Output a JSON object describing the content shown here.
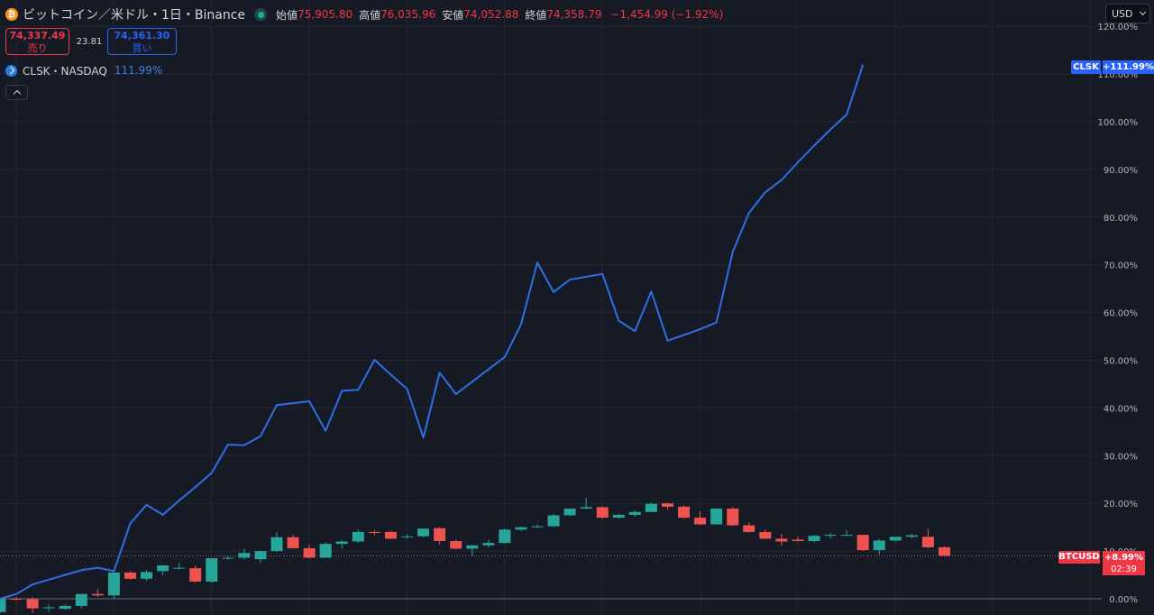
{
  "header": {
    "coin_icon": "bitcoin-icon",
    "coin_glyph": "₿",
    "title": "ビットコイン／米ドル・1日・Binance",
    "market_status": "market-open-dot-icon",
    "ohlc": [
      {
        "label": "始値",
        "value": "75,905.80"
      },
      {
        "label": "高値",
        "value": "76,035.96"
      },
      {
        "label": "安値",
        "value": "74,052.88"
      },
      {
        "label": "終値",
        "value": "74,358.79"
      }
    ],
    "change": "−1,454.99 (−1.92%)"
  },
  "quote": {
    "sell_price": "74,337.49",
    "sell_label": "売り",
    "spread": "23.81",
    "buy_price": "74,361.30",
    "buy_label": "買い"
  },
  "compare": {
    "icon": "compare-symbol-icon",
    "name": "CLSK・NASDAQ",
    "value": "111.99%"
  },
  "currency_select": {
    "value": "USD"
  },
  "tags": {
    "clsk_name": "CLSK",
    "clsk_value": "+111.99%",
    "btc_name": "BTCUSD",
    "btc_value": "+8.99%",
    "btc_countdown": "02:39"
  },
  "colors": {
    "background": "#161a25",
    "grid": "#232632",
    "up": "#26a69a",
    "down": "#ef5350",
    "compare_line": "#2f6fe6",
    "axis_text": "#b2b5be"
  },
  "chart_data": {
    "type": "line",
    "yscale": "percent",
    "ylim": [
      0,
      120
    ],
    "y_ticks": [
      "0.00%",
      "10.00%",
      "20.00%",
      "30.00%",
      "40.00%",
      "50.00%",
      "60.00%",
      "70.00%",
      "80.00%",
      "90.00%",
      "100.00%",
      "110.00%",
      "120.00%"
    ],
    "y_tick_values": [
      0,
      10,
      20,
      30,
      40,
      50,
      60,
      70,
      80,
      90,
      100,
      110,
      120
    ],
    "grid": true,
    "reference_line_value": 8.99,
    "baseline_value": 0,
    "series": [
      {
        "name": "CLSK",
        "kind": "line",
        "values": [
          0.0,
          1.0,
          3.0,
          4.0,
          5.0,
          6.0,
          6.5,
          5.8,
          15.8,
          19.7,
          17.6,
          20.6,
          23.4,
          26.4,
          32.3,
          32.2,
          34.1,
          40.6,
          41.0,
          41.4,
          35.2,
          43.6,
          43.8,
          50.1,
          47.0,
          44.0,
          33.8,
          47.4,
          42.9,
          45.5,
          48.1,
          50.7,
          57.5,
          70.5,
          64.3,
          66.9,
          67.5,
          68.1,
          58.3,
          56.1,
          64.4,
          54.1,
          55.3,
          56.5,
          57.9,
          72.7,
          80.9,
          85.2,
          87.8,
          91.5,
          95.0,
          98.4,
          101.5,
          111.99
        ]
      },
      {
        "name": "BTCUSD",
        "kind": "candlestick",
        "ohlc": [
          [
            -2.8,
            0.0,
            -3.0,
            0.0
          ],
          [
            0.0,
            0.4,
            -0.4,
            -0.1
          ],
          [
            -0.1,
            0.4,
            -3.0,
            -2.0
          ],
          [
            -2.0,
            -1.2,
            -2.8,
            -1.8
          ],
          [
            -2.1,
            -1.2,
            -2.3,
            -1.5
          ],
          [
            -1.5,
            1.0,
            -2.0,
            1.0
          ],
          [
            1.0,
            2.0,
            0.4,
            0.7
          ],
          [
            0.7,
            5.6,
            0.0,
            5.5
          ],
          [
            5.5,
            5.8,
            4.0,
            4.2
          ],
          [
            4.2,
            6.0,
            3.8,
            5.6
          ],
          [
            5.8,
            7.0,
            5.0,
            7.0
          ],
          [
            6.4,
            7.5,
            6.2,
            6.5
          ],
          [
            6.4,
            7.0,
            3.4,
            3.6
          ],
          [
            3.6,
            8.5,
            3.4,
            8.5
          ],
          [
            8.5,
            9.1,
            8.2,
            8.6
          ],
          [
            8.6,
            10.5,
            8.2,
            9.6
          ],
          [
            8.3,
            10.0,
            7.5,
            10.0
          ],
          [
            10.0,
            14.0,
            9.8,
            12.9
          ],
          [
            12.9,
            13.4,
            10.5,
            10.6
          ],
          [
            10.6,
            11.4,
            8.5,
            8.6
          ],
          [
            8.6,
            11.8,
            8.6,
            11.5
          ],
          [
            11.5,
            12.3,
            10.5,
            12.0
          ],
          [
            12.0,
            14.5,
            11.8,
            14.0
          ],
          [
            14.0,
            14.4,
            13.2,
            13.9
          ],
          [
            14.0,
            14.2,
            12.5,
            12.6
          ],
          [
            13.0,
            13.5,
            12.6,
            13.1
          ],
          [
            13.1,
            14.8,
            12.9,
            14.7
          ],
          [
            14.8,
            15.0,
            11.4,
            12.1
          ],
          [
            12.1,
            12.4,
            10.3,
            10.5
          ],
          [
            10.5,
            11.3,
            9.0,
            11.2
          ],
          [
            11.2,
            12.4,
            10.8,
            11.7
          ],
          [
            11.7,
            14.7,
            11.6,
            14.5
          ],
          [
            14.5,
            15.1,
            14.2,
            15.0
          ],
          [
            15.0,
            15.6,
            14.8,
            15.2
          ],
          [
            15.2,
            17.8,
            15.0,
            17.5
          ],
          [
            17.5,
            19.0,
            17.3,
            18.9
          ],
          [
            18.9,
            21.2,
            18.8,
            19.2
          ],
          [
            19.2,
            19.4,
            16.8,
            17.0
          ],
          [
            17.0,
            17.8,
            16.8,
            17.6
          ],
          [
            17.6,
            18.6,
            17.2,
            18.2
          ],
          [
            18.2,
            20.2,
            18.1,
            19.9
          ],
          [
            20.0,
            20.2,
            18.7,
            19.3
          ],
          [
            19.3,
            19.6,
            16.8,
            17.0
          ],
          [
            17.0,
            18.3,
            15.5,
            15.6
          ],
          [
            15.6,
            19.0,
            15.5,
            18.9
          ],
          [
            18.9,
            19.2,
            15.3,
            15.4
          ],
          [
            15.4,
            16.0,
            13.8,
            14.0
          ],
          [
            14.0,
            14.6,
            12.5,
            12.6
          ],
          [
            12.6,
            13.6,
            11.2,
            12.0
          ],
          [
            12.4,
            13.0,
            12.0,
            12.1
          ],
          [
            12.1,
            13.4,
            11.8,
            13.2
          ],
          [
            13.2,
            13.8,
            12.6,
            13.4
          ],
          [
            13.4,
            14.4,
            13.2,
            13.4
          ],
          [
            13.4,
            13.4,
            10.0,
            10.2
          ],
          [
            10.2,
            12.5,
            9.2,
            12.2
          ],
          [
            12.2,
            13.0,
            12.0,
            13.0
          ],
          [
            13.0,
            13.6,
            12.6,
            13.3
          ],
          [
            13.0,
            14.6,
            10.6,
            10.8
          ],
          [
            10.8,
            11.0,
            8.99,
            9.0
          ]
        ]
      }
    ]
  }
}
